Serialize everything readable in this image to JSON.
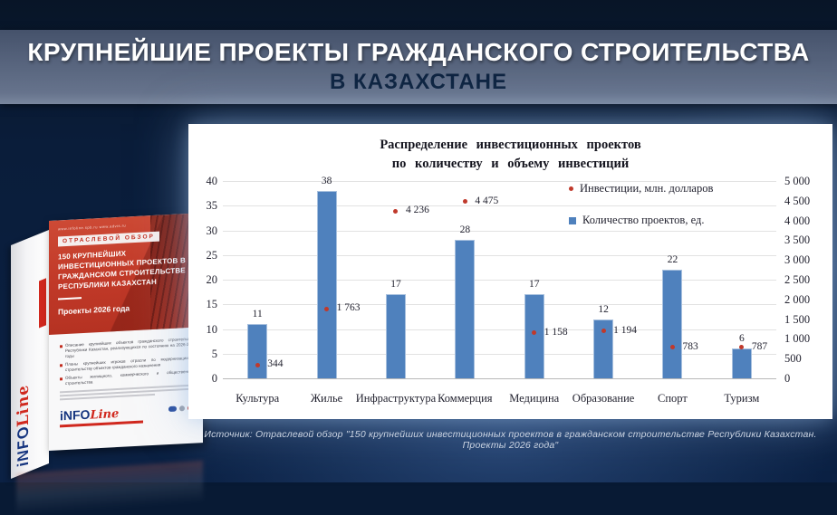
{
  "header": {
    "title_line1": "КРУПНЕЙШИЕ ПРОЕКТЫ ГРАЖДАНСКОГО СТРОИТЕЛЬСТВА",
    "title_line2": "В КАЗАХСТАНЕ"
  },
  "source_note": "Источник: Отраслевой обзор \"150 крупнейших инвестиционных проектов в гражданском строительстве Республики Казахстан. Проекты 2026 года\"",
  "book_cover": {
    "url_row": "www.infoline.spb.ru      www.advis.ru",
    "series_label": "ОТРАСЛЕВОЙ ОБЗОР",
    "title": "150 КРУПНЕЙШИХ ИНВЕСТИЦИОННЫХ ПРОЕКТОВ В ГРАЖДАНСКОМ СТРОИТЕЛЬСТВЕ РЕСПУБЛИКИ КАЗАХСТАН",
    "subtitle": "Проекты 2026 года",
    "bullets": [
      "Описание крупнейших объектов гражданского строительства Республики Казахстан, реализующихся по состоянию на 2026-2029 годы",
      "Планы крупнейших игроков отрасли по модернизации и строительству объектов гражданского назначения",
      "Объекты жилищного, коммерческого и общественного строительства"
    ],
    "logo": {
      "info": "iNFO",
      "line": "Line"
    }
  },
  "chart_data": {
    "type": "bar",
    "title_lines": [
      "Распределение инвестиционных проектов",
      "по количеству и объему инвестиций"
    ],
    "categories": [
      "Культура",
      "Жилье",
      "Инфраструктура",
      "Коммерция",
      "Медицина",
      "Образование",
      "Спорт",
      "Туризм"
    ],
    "series": [
      {
        "name": "Инвестиции, млн. долларов",
        "type": "scatter",
        "axis": "right",
        "color": "#c0392b",
        "values": [
          344,
          1763,
          4236,
          4475,
          1158,
          1194,
          783,
          787
        ],
        "labels": [
          "344",
          "1 763",
          "4 236",
          "4 475",
          "1 158",
          "1 194",
          "783",
          "787"
        ]
      },
      {
        "name": "Количество проектов, ед.",
        "type": "bar",
        "axis": "left",
        "color": "#4f81bd",
        "values": [
          11,
          38,
          17,
          28,
          17,
          12,
          22,
          6
        ],
        "labels": [
          "11",
          "38",
          "17",
          "28",
          "17",
          "12",
          "22",
          "6"
        ]
      }
    ],
    "left_axis": {
      "min": 0,
      "max": 40,
      "step": 5,
      "ticks": [
        "0",
        "5",
        "10",
        "15",
        "20",
        "25",
        "30",
        "35",
        "40"
      ]
    },
    "right_axis": {
      "min": 0,
      "max": 5000,
      "step": 500,
      "ticks": [
        "0",
        "500",
        "1 000",
        "1 500",
        "2 000",
        "2 500",
        "3 000",
        "3 500",
        "4 000",
        "4 500",
        "5 000"
      ]
    },
    "grid": true,
    "legend_position": "top-right"
  }
}
